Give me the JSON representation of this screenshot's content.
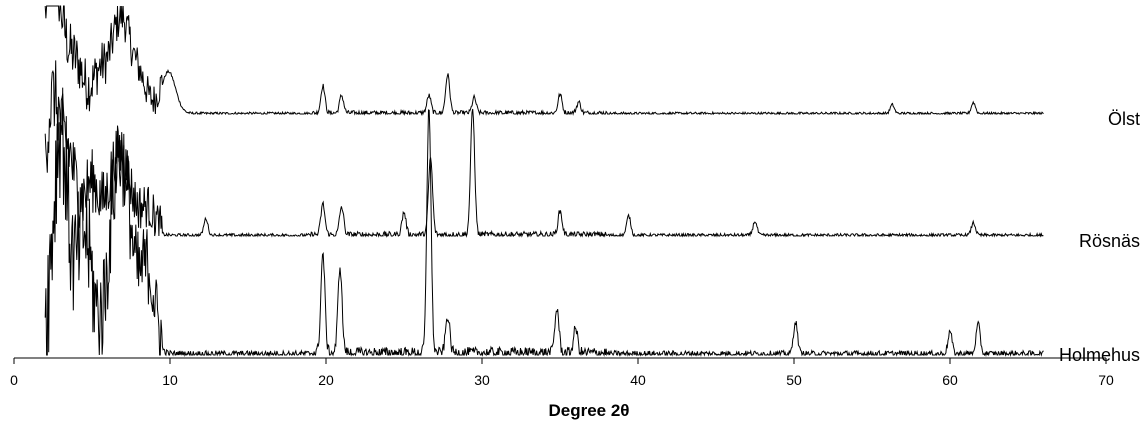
{
  "chart_data": {
    "type": "line",
    "title": "",
    "xlabel": "Degree 2θ",
    "ylabel": "",
    "xlim": [
      0,
      70
    ],
    "x_ticks": [
      0,
      10,
      20,
      30,
      40,
      50,
      60,
      70
    ],
    "x_tick_labels": [
      "0",
      "10",
      "20",
      "30",
      "40",
      "50",
      "60",
      "70"
    ],
    "y_axis_visible": false,
    "grid": false,
    "legend": "none",
    "line_color": "#000000",
    "x_range_measured": [
      2,
      66
    ],
    "series": [
      {
        "name": "Ölst",
        "peaks": [
          {
            "x": 2.3,
            "y": 0.95
          },
          {
            "x": 3.0,
            "y": 0.55
          },
          {
            "x": 4.0,
            "y": 0.35
          },
          {
            "x": 5.5,
            "y": 0.3
          },
          {
            "x": 6.5,
            "y": 0.45
          },
          {
            "x": 7.1,
            "y": 0.55
          },
          {
            "x": 8.0,
            "y": 0.28
          },
          {
            "x": 9.9,
            "y": 0.38
          },
          {
            "x": 19.8,
            "y": 0.25
          },
          {
            "x": 21.0,
            "y": 0.16
          },
          {
            "x": 26.6,
            "y": 0.16
          },
          {
            "x": 27.8,
            "y": 0.35
          },
          {
            "x": 29.5,
            "y": 0.14
          },
          {
            "x": 35.0,
            "y": 0.17
          },
          {
            "x": 36.2,
            "y": 0.1
          },
          {
            "x": 56.3,
            "y": 0.08
          },
          {
            "x": 61.5,
            "y": 0.1
          }
        ]
      },
      {
        "name": "Rösnäs",
        "peaks": [
          {
            "x": 2.5,
            "y": 0.85
          },
          {
            "x": 3.5,
            "y": 0.45
          },
          {
            "x": 5.0,
            "y": 0.3
          },
          {
            "x": 6.5,
            "y": 0.4
          },
          {
            "x": 7.2,
            "y": 0.3
          },
          {
            "x": 8.5,
            "y": 0.15
          },
          {
            "x": 12.3,
            "y": 0.12
          },
          {
            "x": 19.8,
            "y": 0.22
          },
          {
            "x": 21.0,
            "y": 0.2
          },
          {
            "x": 25.0,
            "y": 0.16
          },
          {
            "x": 26.7,
            "y": 0.55
          },
          {
            "x": 29.4,
            "y": 0.9
          },
          {
            "x": 35.0,
            "y": 0.17
          },
          {
            "x": 39.4,
            "y": 0.14
          },
          {
            "x": 47.5,
            "y": 0.1
          },
          {
            "x": 61.5,
            "y": 0.09
          }
        ]
      },
      {
        "name": "Holmehus",
        "peaks": [
          {
            "x": 3.0,
            "y": 0.8
          },
          {
            "x": 4.5,
            "y": 0.4
          },
          {
            "x": 6.5,
            "y": 0.5
          },
          {
            "x": 7.2,
            "y": 0.48
          },
          {
            "x": 8.5,
            "y": 0.3
          },
          {
            "x": 19.8,
            "y": 0.4
          },
          {
            "x": 20.9,
            "y": 0.35
          },
          {
            "x": 26.6,
            "y": 1.0
          },
          {
            "x": 27.8,
            "y": 0.15
          },
          {
            "x": 34.8,
            "y": 0.18
          },
          {
            "x": 36.0,
            "y": 0.1
          },
          {
            "x": 50.1,
            "y": 0.13
          },
          {
            "x": 60.0,
            "y": 0.09
          },
          {
            "x": 61.8,
            "y": 0.12
          }
        ]
      }
    ]
  }
}
